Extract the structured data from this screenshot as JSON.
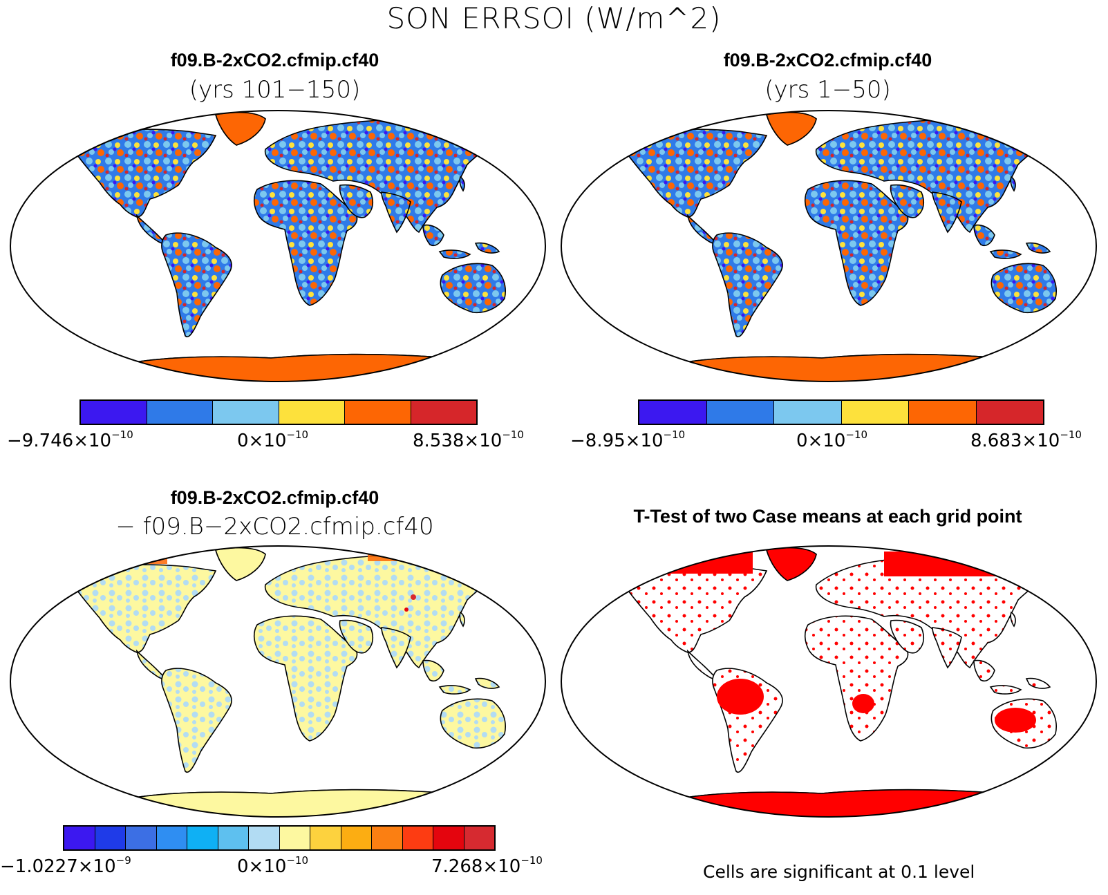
{
  "title": "SON ERRSOI (W/m^2)",
  "panels": [
    {
      "title": "f09.B-2xCO2.cfmip.cf40",
      "subtitle": "(yrs 101−150)",
      "colorbar": {
        "colors": [
          "#3c18f0",
          "#2f7ae8",
          "#7cc8ef",
          "#fde13c",
          "#fd6604",
          "#d6262a"
        ],
        "labels": [
          {
            "base": "−9.746×10",
            "exp": "−10"
          },
          {
            "base": "0×10",
            "exp": "−10"
          },
          {
            "base": "8.538×10",
            "exp": "−10"
          }
        ]
      }
    },
    {
      "title": "f09.B-2xCO2.cfmip.cf40",
      "subtitle": "(yrs 1−50)",
      "colorbar": {
        "colors": [
          "#3c18f0",
          "#2f7ae8",
          "#7cc8ef",
          "#fde13c",
          "#fd6604",
          "#d6262a"
        ],
        "labels": [
          {
            "base": "−8.95×10",
            "exp": "−10"
          },
          {
            "base": "0×10",
            "exp": "−10"
          },
          {
            "base": "8.683×10",
            "exp": "−10"
          }
        ]
      }
    },
    {
      "title": "f09.B-2xCO2.cfmip.cf40",
      "subtitle": "− f09.B−2xCO2.cfmip.cf40",
      "colorbar": {
        "colors": [
          "#3c18f0",
          "#1f3be8",
          "#3c6fe4",
          "#2f8ef2",
          "#0fb0f4",
          "#5ec0ef",
          "#b2dcf3",
          "#fdf8a0",
          "#fdd23e",
          "#fcad12",
          "#fb7f12",
          "#fd3c12",
          "#e4050e",
          "#d62a30"
        ],
        "labels": [
          {
            "base": "−1.0227×10",
            "exp": "−9"
          },
          {
            "base": "0×10",
            "exp": "−10"
          },
          {
            "base": "7.268×10",
            "exp": "−10"
          }
        ]
      }
    },
    {
      "title": "T-Test of two Case means at each grid point",
      "note": "Cells are significant at 0.1 level"
    }
  ]
}
